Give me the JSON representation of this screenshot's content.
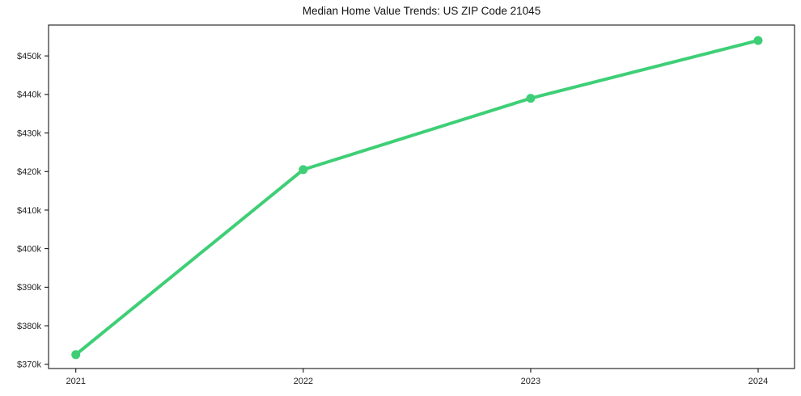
{
  "chart_data": {
    "type": "line",
    "title": "Median Home Value Trends: US ZIP Code 21045",
    "xlabel": "",
    "ylabel": "",
    "x": [
      2021,
      2022,
      2023,
      2024
    ],
    "x_tick_labels": [
      "2021",
      "2022",
      "2023",
      "2024"
    ],
    "values": [
      372.5,
      420.5,
      439.0,
      454.0
    ],
    "values_unit": "thousands of USD",
    "y_ticks": [
      370,
      380,
      390,
      400,
      410,
      420,
      430,
      440,
      450
    ],
    "y_tick_labels": [
      "$370k",
      "$380k",
      "$390k",
      "$400k",
      "$410k",
      "$420k",
      "$430k",
      "$440k",
      "$450k"
    ],
    "ylim": [
      368.9,
      458.0
    ],
    "xlim": [
      2020.88,
      2024.16
    ],
    "grid": false,
    "legend": "none",
    "line_color": "#3ecf76",
    "marker": "circle",
    "axis_color": "#000000",
    "text_color": "#1f1f1f",
    "background_color": "#ffffff"
  }
}
